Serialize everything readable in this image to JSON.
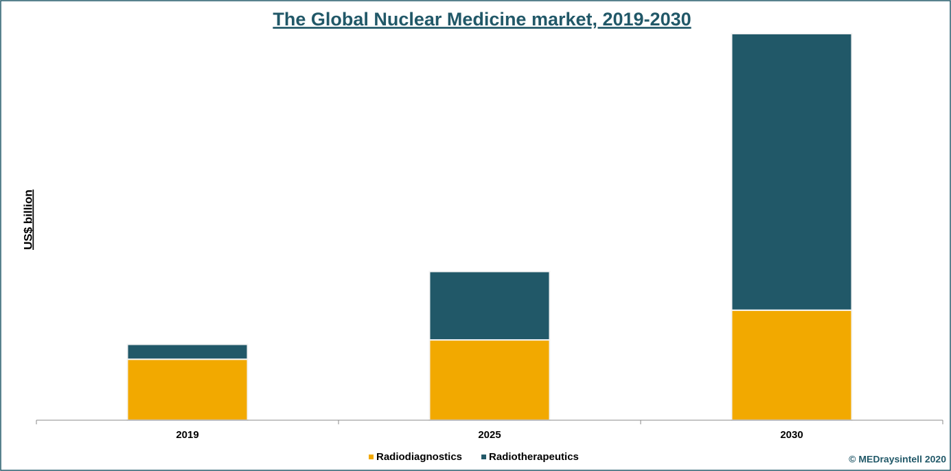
{
  "chart_data": {
    "type": "stacked_bar",
    "title": "The Global Nuclear Medicine market, 2019-2030",
    "y_label": "US$ billion",
    "source": "© MEDraysintell 2020",
    "categories": [
      "2019",
      "2025",
      "2030"
    ],
    "series": [
      {
        "name": "Radiodiagnostics",
        "color": "#f2a900",
        "values": [
          4.1,
          5.4,
          7.4
        ]
      },
      {
        "name": "Radiotherapeutics",
        "color": "#215868",
        "values": [
          1.0,
          4.6,
          18.6
        ]
      }
    ],
    "ylim": [
      0,
      26
    ],
    "legend": "bottom"
  }
}
